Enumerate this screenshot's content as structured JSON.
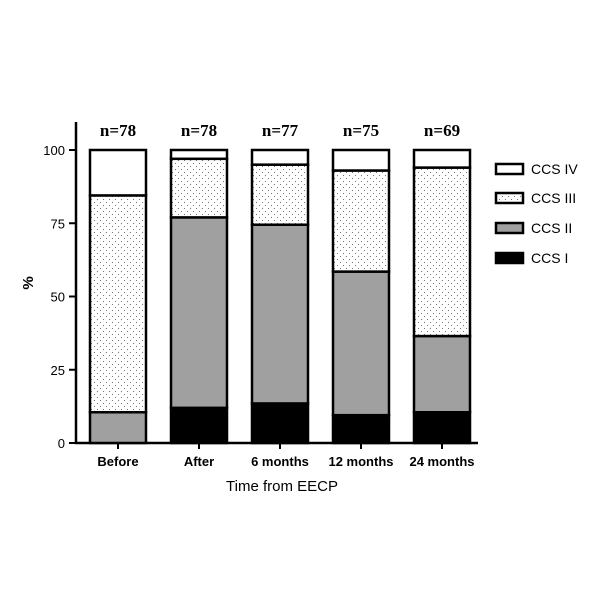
{
  "chart_data": {
    "type": "bar",
    "stacked": true,
    "categories": [
      "Before",
      "After",
      "6 months",
      "12 months",
      "24 months"
    ],
    "n_labels": [
      "n=78",
      "n=78",
      "n=77",
      "n=75",
      "n=69"
    ],
    "series": [
      {
        "name": "CCS I",
        "values": [
          0,
          12,
          13.5,
          9.5,
          10.5
        ],
        "fill": "#000000"
      },
      {
        "name": "CCS II",
        "values": [
          10.5,
          65,
          61,
          49,
          26
        ],
        "fill": "#a0a0a0"
      },
      {
        "name": "CCS III",
        "values": [
          74,
          20,
          20.5,
          34.5,
          57.5
        ],
        "fill": "dotted"
      },
      {
        "name": "CCS IV",
        "values": [
          15.5,
          3,
          5,
          7,
          6
        ],
        "fill": "#ffffff"
      }
    ],
    "legend_order": [
      "CCS IV",
      "CCS III",
      "CCS II",
      "CCS I"
    ],
    "xlabel": "Time from EECP",
    "ylabel": "%",
    "ylim": [
      0,
      100
    ],
    "yticks": [
      "0",
      "25",
      "50",
      "75",
      "100"
    ],
    "grid": false,
    "legend_position": "right"
  }
}
